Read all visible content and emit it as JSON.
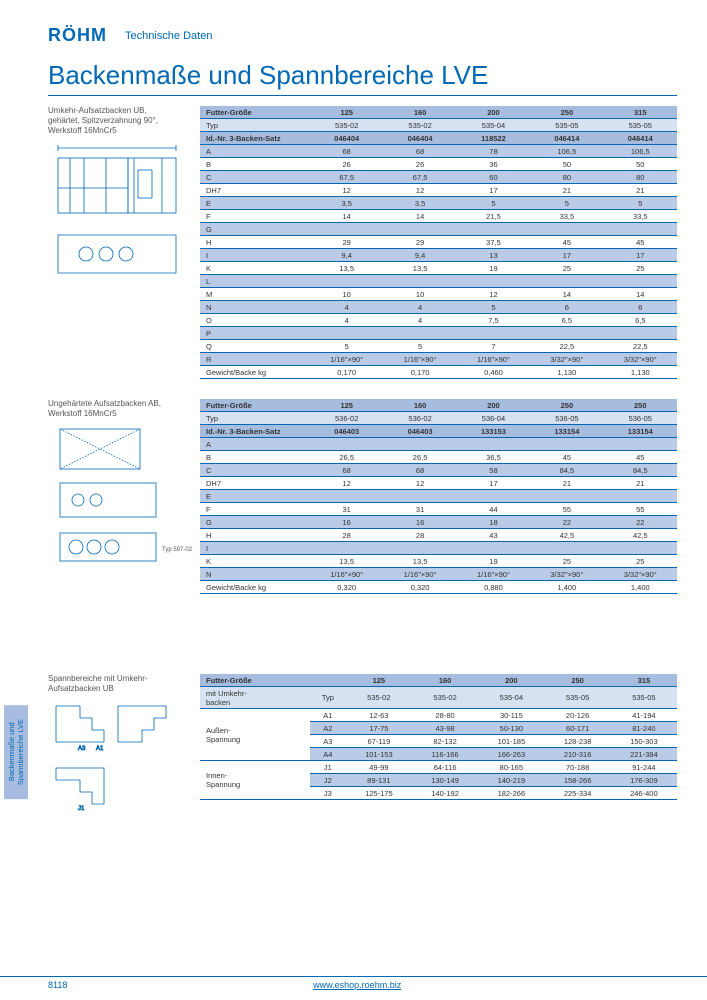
{
  "header": {
    "brand": "RÖHM",
    "tagline": "Technische Daten"
  },
  "title": "Backenmaße und Spannbereiche LVE",
  "side_tab": "Backenmaße und\nSpannbereiche LVE",
  "footer": {
    "page": "8118",
    "url": "www.eshop.roehm.biz"
  },
  "colors": {
    "brand": "#0068b4",
    "hdr": "#a7bde0",
    "sub": "#d6e1f1",
    "band": "#b9cbe6",
    "alt": "#e8eef7"
  },
  "table1": {
    "subtitle": "Umkehr-Aufsatzbacken UB,\ngehärtet, Spitzverzahnung 90°,\nWerkstoff 16MnCr5",
    "cols": [
      "Futter-Größe",
      "125",
      "160",
      "200",
      "250",
      "315"
    ],
    "typRow": [
      "Typ",
      "535-02",
      "535-02",
      "535-04",
      "535-05",
      "535-05"
    ],
    "idRow": [
      "Id.-Nr. 3-Backen-Satz",
      "046404",
      "046404",
      "118522",
      "046414",
      "046414"
    ],
    "rows": [
      [
        "A",
        "68",
        "68",
        "78",
        "106,5",
        "106,5"
      ],
      [
        "B",
        "26",
        "26",
        "36",
        "50",
        "50"
      ],
      [
        "C",
        "67,5",
        "67,5",
        "60",
        "80",
        "80"
      ],
      [
        "DH7",
        "12",
        "12",
        "17",
        "21",
        "21"
      ],
      [
        "E",
        "3,5",
        "3,5",
        "5",
        "5",
        "5"
      ],
      [
        "F",
        "14",
        "14",
        "21,5",
        "33,5",
        "33,5"
      ],
      [
        "G",
        "",
        "",
        "",
        "",
        ""
      ],
      [
        "H",
        "29",
        "29",
        "37,5",
        "45",
        "45"
      ],
      [
        "I",
        "9,4",
        "9,4",
        "13",
        "17",
        "17"
      ],
      [
        "K",
        "13,5",
        "13,5",
        "19",
        "25",
        "25"
      ],
      [
        "L",
        "",
        "",
        "",
        "",
        ""
      ],
      [
        "M",
        "10",
        "10",
        "12",
        "14",
        "14"
      ],
      [
        "N",
        "4",
        "4",
        "5",
        "6",
        "6"
      ],
      [
        "O",
        "4",
        "4",
        "7,5",
        "6,5",
        "6,5"
      ],
      [
        "P",
        "",
        "",
        "",
        "",
        ""
      ],
      [
        "Q",
        "5",
        "5",
        "7",
        "22,5",
        "22,5"
      ],
      [
        "R",
        "1/16\"×90°",
        "1/16\"×90°",
        "1/16\"×90°",
        "3/32\"×90°",
        "3/32\"×90°"
      ],
      [
        "Gewicht/Backe kg",
        "0,170",
        "0,170",
        "0,460",
        "1,130",
        "1,130"
      ]
    ]
  },
  "table2": {
    "subtitle": "Ungehärtete Aufsatzbacken AB,\nWerkstoff 16MnCr5",
    "cols": [
      "Futter-Größe",
      "125",
      "160",
      "200",
      "250",
      "250"
    ],
    "typRow": [
      "Typ",
      "536-02",
      "536-02",
      "536-04",
      "536-05",
      "536-05"
    ],
    "idRow": [
      "Id.-Nr. 3-Backen-Satz",
      "046403",
      "046403",
      "133153",
      "133154",
      "133154"
    ],
    "rows": [
      [
        "A",
        "",
        "",
        "",
        "",
        ""
      ],
      [
        "B",
        "26,5",
        "26,5",
        "36,5",
        "45",
        "45"
      ],
      [
        "C",
        "68",
        "68",
        "58",
        "84,5",
        "84,5"
      ],
      [
        "DH7",
        "12",
        "12",
        "17",
        "21",
        "21"
      ],
      [
        "E",
        "",
        "",
        "",
        "",
        ""
      ],
      [
        "F",
        "31",
        "31",
        "44",
        "55",
        "55"
      ],
      [
        "G",
        "16",
        "16",
        "18",
        "22",
        "22"
      ],
      [
        "H",
        "28",
        "28",
        "43",
        "42,5",
        "42,5"
      ],
      [
        "I",
        "",
        "",
        "",
        "",
        ""
      ],
      [
        "K",
        "13,5",
        "13,5",
        "19",
        "25",
        "25"
      ],
      [
        "N",
        "1/16\"×90°",
        "1/16\"×90°",
        "1/16\"×90°",
        "3/32\"×90°",
        "3/32\"×90°"
      ],
      [
        "Gewicht/Backe kg",
        "0,320",
        "0,320",
        "0,880",
        "1,400",
        "1,400"
      ]
    ],
    "typ_note": "Typ 597-02"
  },
  "table3": {
    "subtitle": "Spannbereiche mit Umkehr-\nAufsatzbacken UB",
    "cols": [
      "Futter-Größe",
      "",
      "125",
      "160",
      "200",
      "250",
      "315"
    ],
    "mitRow": [
      "mit Umkehr-\nbacken",
      "Typ",
      "535-02",
      "535-02",
      "535-04",
      "535-05",
      "535-05"
    ],
    "groups": [
      {
        "label": "Außen-\nSpannung",
        "rows": [
          [
            "A1",
            "12-63",
            "28-80",
            "30-115",
            "20-126",
            "41-194"
          ],
          [
            "A2",
            "17-75",
            "43-98",
            "50-130",
            "60-171",
            "81-240"
          ],
          [
            "A3",
            "67-119",
            "82-132",
            "101-185",
            "128-238",
            "150-303"
          ],
          [
            "A4",
            "101-153",
            "116-166",
            "166-263",
            "210-316",
            "221-384"
          ]
        ]
      },
      {
        "label": "Innen-\nSpannung",
        "rows": [
          [
            "J1",
            "49-99",
            "64-116",
            "80-165",
            "70-188",
            "91-244"
          ],
          [
            "J2",
            "89-131",
            "130-149",
            "140-219",
            "158-266",
            "176-309"
          ],
          [
            "J3",
            "125-175",
            "140-192",
            "182-266",
            "225-334",
            "246-400"
          ]
        ]
      }
    ]
  }
}
